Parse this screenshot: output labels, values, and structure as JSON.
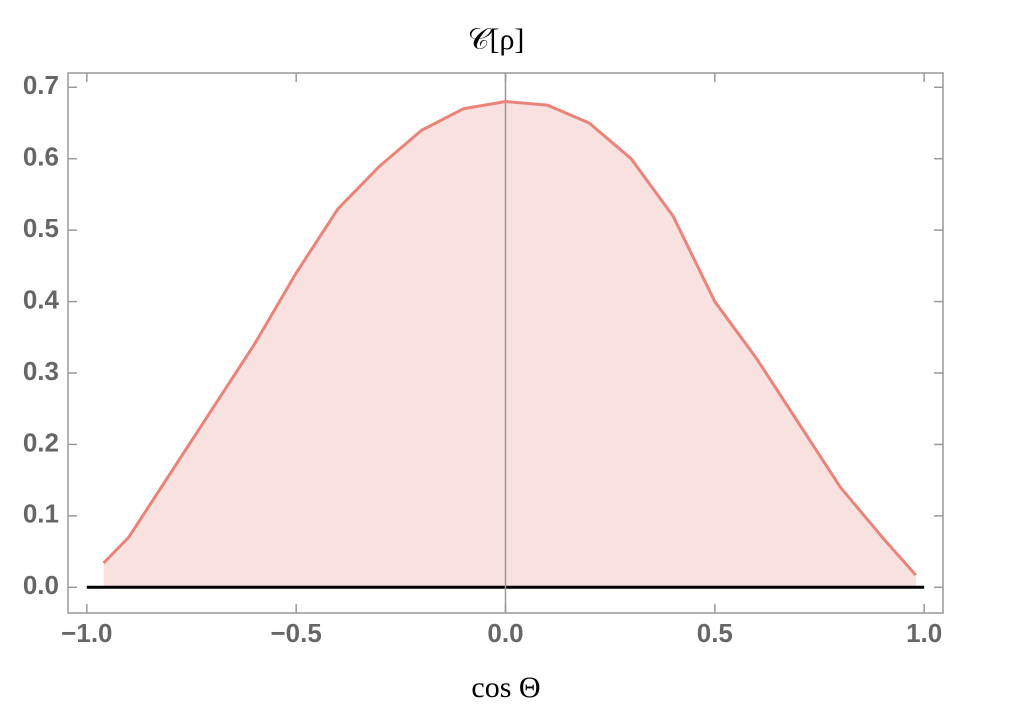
{
  "chart_data": {
    "type": "area",
    "title": "𝒞[ρ]",
    "x_label": "cos Θ",
    "x": [
      -0.96,
      -0.9,
      -0.8,
      -0.7,
      -0.6,
      -0.5,
      -0.4,
      -0.3,
      -0.2,
      -0.1,
      0,
      0.1,
      0.2,
      0.3,
      0.4,
      0.5,
      0.6,
      0.7,
      0.8,
      0.9,
      0.98
    ],
    "values": [
      0.034,
      0.07,
      0.16,
      0.25,
      0.34,
      0.44,
      0.53,
      0.59,
      0.64,
      0.67,
      0.68,
      0.675,
      0.65,
      0.6,
      0.52,
      0.4,
      0.32,
      0.23,
      0.14,
      0.07,
      0.017
    ],
    "color": "#e8847a",
    "fill": "#f9e1df",
    "xlim": [
      -1.045,
      1.045
    ],
    "ylim": [
      -0.036,
      0.72
    ],
    "xticks": [
      {
        "value": -1,
        "label": "−1.0"
      },
      {
        "value": -0.5,
        "label": "−0.5"
      },
      {
        "value": 0,
        "label": "0.0"
      },
      0.5,
      {
        "value": 1,
        "label": "1.0"
      }
    ],
    "yticks": [
      {
        "value": 0,
        "label": "0.0"
      },
      0.1,
      0.2,
      0.3,
      0.4,
      0.5,
      0.6,
      0.7
    ]
  }
}
